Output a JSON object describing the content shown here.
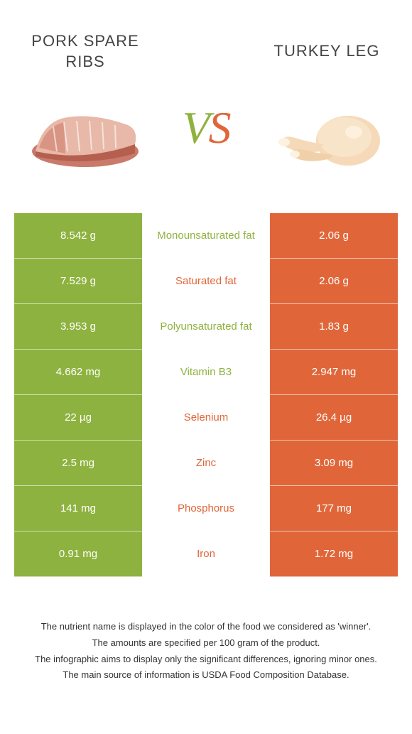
{
  "food_left": {
    "title": "PORK SPARE RIBS",
    "color": "#8eb23f"
  },
  "food_right": {
    "title": "TURKEY LEG",
    "color": "#e0663a"
  },
  "vs": {
    "left": "V",
    "right": "S"
  },
  "rows": [
    {
      "left": "8.542 g",
      "name": "Monounsaturated fat",
      "right": "2.06 g",
      "winner": "left"
    },
    {
      "left": "7.529 g",
      "name": "Saturated fat",
      "right": "2.06 g",
      "winner": "right"
    },
    {
      "left": "3.953 g",
      "name": "Polyunsaturated fat",
      "right": "1.83 g",
      "winner": "left"
    },
    {
      "left": "4.662 mg",
      "name": "Vitamin B3",
      "right": "2.947 mg",
      "winner": "left"
    },
    {
      "left": "22 µg",
      "name": "Selenium",
      "right": "26.4 µg",
      "winner": "right"
    },
    {
      "left": "2.5 mg",
      "name": "Zinc",
      "right": "3.09 mg",
      "winner": "right"
    },
    {
      "left": "141 mg",
      "name": "Phosphorus",
      "right": "177 mg",
      "winner": "right"
    },
    {
      "left": "0.91 mg",
      "name": "Iron",
      "right": "1.72 mg",
      "winner": "right"
    }
  ],
  "footer": {
    "line1": "The nutrient name is displayed in the color of the food we considered as 'winner'.",
    "line2": "The amounts are specified per 100 gram of the product.",
    "line3": "The infographic aims to display only the significant differences, ignoring minor ones.",
    "line4": "The main source of information is USDA Food Composition Database."
  }
}
